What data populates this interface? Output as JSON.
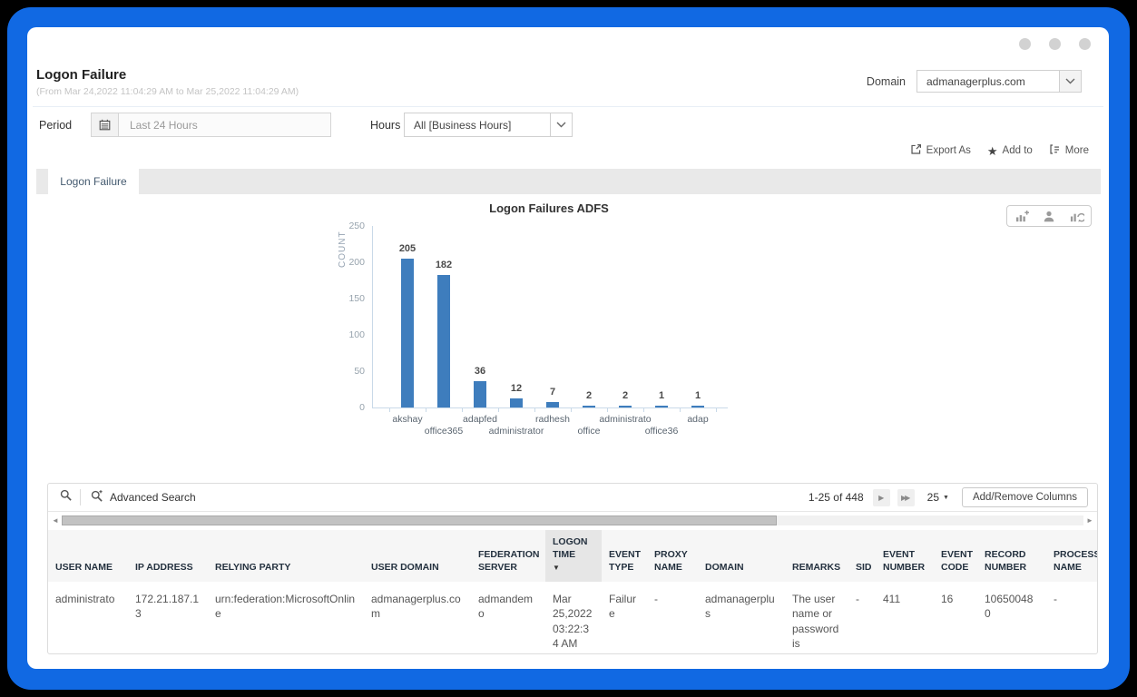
{
  "header": {
    "title": "Logon Failure",
    "subtitle": "(From Mar 24,2022 11:04:29 AM to Mar 25,2022 11:04:29 AM)",
    "domain_label": "Domain",
    "domain_value": "admanagerplus.com"
  },
  "filters": {
    "period_label": "Period",
    "period_value": "Last 24 Hours",
    "hours_label": "Hours",
    "hours_value": "All [Business Hours]"
  },
  "actions": {
    "export_as": "Export As",
    "add_to": "Add to",
    "more": "More"
  },
  "tabs": [
    {
      "label": "Logon Failure",
      "active": true
    }
  ],
  "chart_data": {
    "type": "bar",
    "title": "Logon Failures ADFS",
    "ylabel": "COUNT",
    "categories": [
      "akshay",
      "office365",
      "adapfed",
      "administrator",
      "radhesh",
      "office",
      "administrato",
      "office36",
      "adap"
    ],
    "values": [
      205,
      182,
      36,
      12,
      7,
      2,
      2,
      1,
      1
    ],
    "yticks": [
      0,
      50,
      100,
      150,
      200,
      250
    ],
    "ylim": [
      0,
      250
    ],
    "bar_color": "#3e7dbd",
    "grid": false,
    "legend": false
  },
  "table": {
    "toolbar": {
      "advanced_search_label": "Advanced Search",
      "pagination": "1-25 of 448",
      "page_size": "25",
      "add_remove_columns_label": "Add/Remove Columns"
    },
    "columns": [
      "USER NAME",
      "IP ADDRESS",
      "RELYING PARTY",
      "USER DOMAIN",
      "FEDERATION SERVER",
      "LOGON TIME",
      "EVENT TYPE",
      "PROXY NAME",
      "DOMAIN",
      "REMARKS",
      "SID",
      "EVENT NUMBER",
      "EVENT CODE",
      "RECORD NUMBER",
      "PROCESS NAME"
    ],
    "sorted_column_index": 5,
    "rows": [
      [
        "administrato",
        "172.21.187.13",
        "urn:federation:MicrosoftOnline",
        "admanagerplus.com",
        "admandemo",
        "Mar 25,2022 03:22:34 AM",
        "Failure",
        "-",
        "admanagerplus",
        "The user name or password is",
        "-",
        "411",
        "16",
        "106500480",
        "-"
      ]
    ]
  },
  "icons": {
    "star": "★",
    "sort_desc": "▼",
    "pager_next": "▶",
    "pager_last": "▶▶",
    "caret_down": "▼",
    "scroll_left": "◄",
    "scroll_right": "►"
  },
  "colors": {
    "frame_blue": "#1169e3",
    "bar_blue": "#3e7dbd",
    "tab_text": "#445a6f"
  }
}
